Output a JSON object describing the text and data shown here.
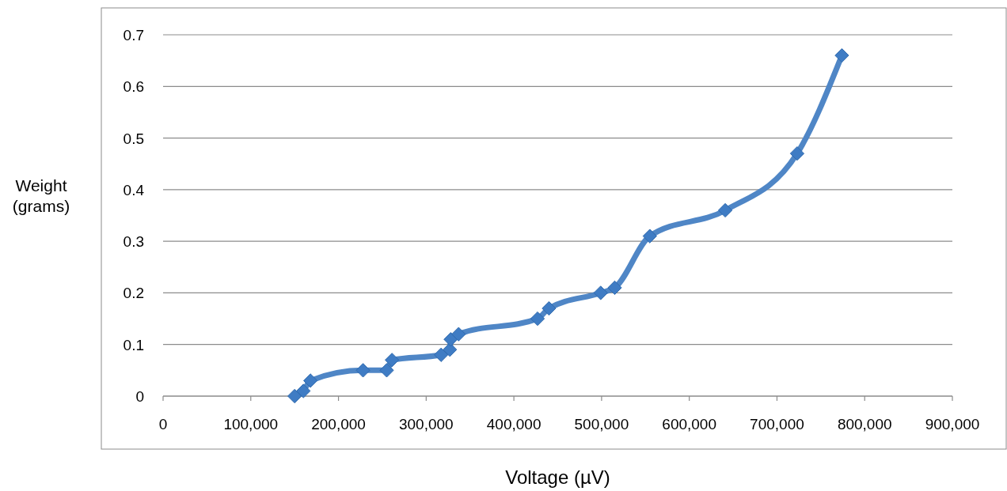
{
  "chart_data": {
    "type": "line",
    "xlabel": "Voltage (µV)",
    "ylabel": "Weight (grams)",
    "x": [
      150000,
      160000,
      168000,
      228000,
      255000,
      261000,
      317000,
      327000,
      328000,
      337000,
      427000,
      440000,
      499000,
      515000,
      555000,
      641000,
      723000,
      774000
    ],
    "series": [
      {
        "color": "#4f86c6",
        "values": [
          0,
          0.01,
          0.03,
          0.05,
          0.05,
          0.07,
          0.08,
          0.09,
          0.11,
          0.12,
          0.15,
          0.17,
          0.2,
          0.21,
          0.31,
          0.36,
          0.47,
          0.66
        ]
      }
    ],
    "xlim": [
      0,
      900000
    ],
    "xticks": [
      {
        "value": 0,
        "label": "0"
      },
      {
        "value": 100000,
        "label": "100,000"
      },
      {
        "value": 200000,
        "label": "200,000"
      },
      {
        "value": 300000,
        "label": "300,000"
      },
      {
        "value": 400000,
        "label": "400,000"
      },
      {
        "value": 500000,
        "label": "500,000"
      },
      {
        "value": 600000,
        "label": "600,000"
      },
      {
        "value": 700000,
        "label": "700,000"
      },
      {
        "value": 800000,
        "label": "800,000"
      },
      {
        "value": 900000,
        "label": "900,000"
      }
    ],
    "ylim": [
      0,
      0.7
    ],
    "yticks": [
      0,
      0.1,
      0.2,
      0.3,
      0.4,
      0.5,
      0.6,
      0.7
    ],
    "grid": "y",
    "marker": "diamond",
    "line_style": "solid"
  }
}
